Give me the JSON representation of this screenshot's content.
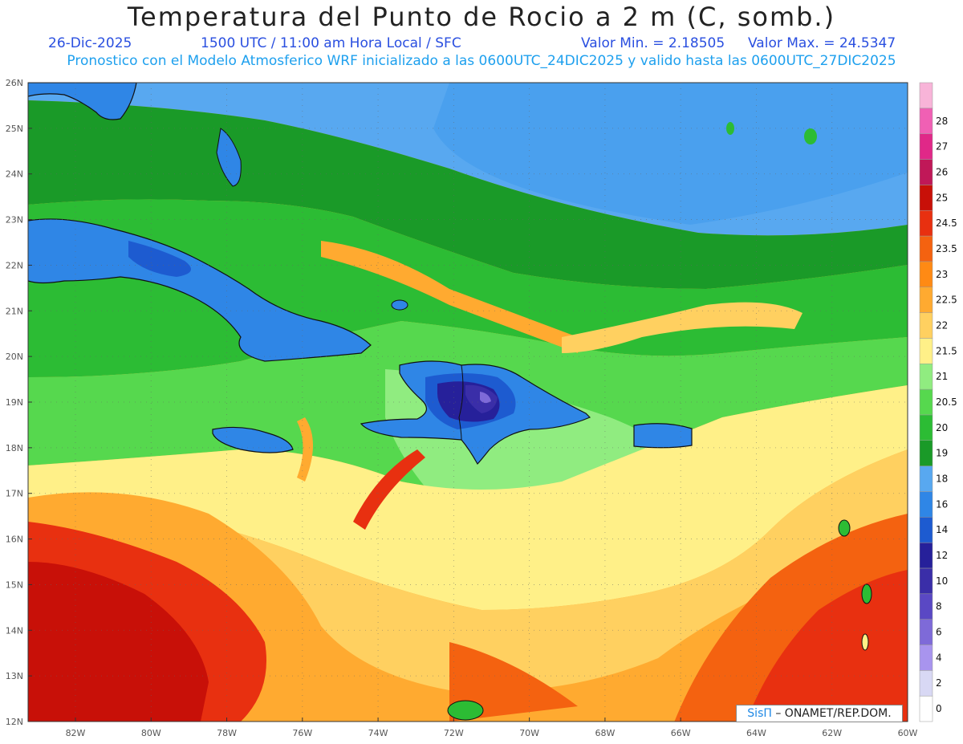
{
  "header": {
    "title": "Temperatura del Punto de Rocio a 2 m (C, somb.)",
    "date": "26-Dic-2025",
    "time": "1500 UTC / 11:00 am Hora Local / SFC",
    "min": "Valor Min. = 2.18505",
    "max": "Valor Max. = 24.5347",
    "model": "Pronostico con el Modelo Atmosferico WRF inicializado a las 0600UTC_24DIC2025 y valido hasta las  0600UTC_27DIC2025"
  },
  "lat_labels": [
    "26N",
    "25N",
    "24N",
    "23N",
    "22N",
    "21N",
    "20N",
    "19N",
    "18N",
    "17N",
    "16N",
    "15N",
    "14N",
    "13N",
    "12N"
  ],
  "lon_labels": [
    "82W",
    "80W",
    "78W",
    "76W",
    "74W",
    "72W",
    "70W",
    "68W",
    "66W",
    "64W",
    "62W",
    "60W"
  ],
  "colorbar": {
    "levels": [
      "0",
      "2",
      "4",
      "6",
      "8",
      "10",
      "12",
      "14",
      "16",
      "18",
      "19",
      "20",
      "20.5",
      "21",
      "21.5",
      "22",
      "22.5",
      "23",
      "23.5",
      "24.5",
      "25",
      "26",
      "27",
      "28"
    ],
    "colors": [
      "#ffffff",
      "#d8d8f4",
      "#a894ee",
      "#7e6ad8",
      "#5a48c4",
      "#3a2ea8",
      "#26209a",
      "#1d5bd0",
      "#2f86e6",
      "#58a8f0",
      "#1a9a28",
      "#2cbc34",
      "#56d84e",
      "#90ec80",
      "#fff088",
      "#ffd060",
      "#ffaa30",
      "#ff8a14",
      "#f46210",
      "#e83010",
      "#c81008",
      "#c01858",
      "#e02888",
      "#f060b4",
      "#f8b4d8"
    ]
  },
  "credit": {
    "logo": "SisΠ",
    "text": "– ONAMET/REP.DOM."
  }
}
